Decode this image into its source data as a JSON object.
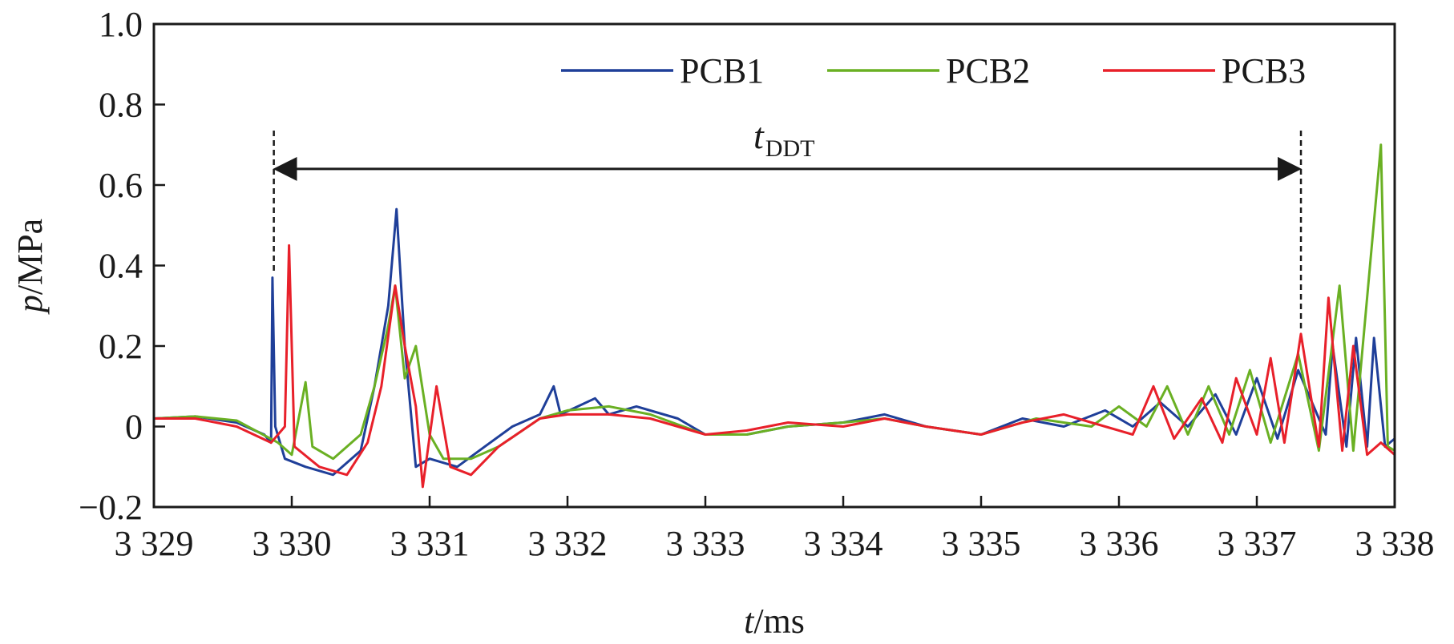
{
  "chart_data": {
    "type": "line",
    "xlabel": {
      "var": "t",
      "unit": "/ms"
    },
    "ylabel": {
      "var": "p",
      "unit": "/MPa"
    },
    "xlim": [
      3329,
      3338
    ],
    "ylim": [
      -0.2,
      1.0
    ],
    "x_ticks": [
      3329,
      3330,
      3331,
      3332,
      3333,
      3334,
      3335,
      3336,
      3337,
      3338
    ],
    "x_tick_labels": [
      "3 329",
      "3 330",
      "3 331",
      "3 332",
      "3 333",
      "3 334",
      "3 335",
      "3 336",
      "3 337",
      "3 338"
    ],
    "y_ticks": [
      -0.2,
      0,
      0.2,
      0.4,
      0.6,
      0.8,
      1.0
    ],
    "y_tick_labels": [
      "−0.2",
      "0",
      "0.2",
      "0.4",
      "0.6",
      "0.8",
      "1.0"
    ],
    "grid": false,
    "legend_position": "top-right",
    "series": [
      {
        "name": "PCB1",
        "color": "#1f3f99",
        "points": [
          [
            3329.0,
            0.02
          ],
          [
            3329.3,
            0.025
          ],
          [
            3329.6,
            0.01
          ],
          [
            3329.8,
            -0.02
          ],
          [
            3329.85,
            -0.04
          ],
          [
            3329.86,
            0.37
          ],
          [
            3329.88,
            0.0
          ],
          [
            3329.95,
            -0.08
          ],
          [
            3330.1,
            -0.1
          ],
          [
            3330.3,
            -0.12
          ],
          [
            3330.5,
            -0.06
          ],
          [
            3330.6,
            0.1
          ],
          [
            3330.7,
            0.3
          ],
          [
            3330.76,
            0.54
          ],
          [
            3330.82,
            0.2
          ],
          [
            3330.9,
            -0.1
          ],
          [
            3331.0,
            -0.08
          ],
          [
            3331.2,
            -0.1
          ],
          [
            3331.4,
            -0.05
          ],
          [
            3331.6,
            0.0
          ],
          [
            3331.8,
            0.03
          ],
          [
            3331.9,
            0.1
          ],
          [
            3331.95,
            0.03
          ],
          [
            3332.2,
            0.07
          ],
          [
            3332.3,
            0.03
          ],
          [
            3332.5,
            0.05
          ],
          [
            3332.8,
            0.02
          ],
          [
            3333.0,
            -0.02
          ],
          [
            3333.3,
            -0.02
          ],
          [
            3333.6,
            0.0
          ],
          [
            3334.0,
            0.01
          ],
          [
            3334.3,
            0.03
          ],
          [
            3334.6,
            0.0
          ],
          [
            3335.0,
            -0.02
          ],
          [
            3335.3,
            0.02
          ],
          [
            3335.6,
            0.0
          ],
          [
            3335.9,
            0.04
          ],
          [
            3336.1,
            0.0
          ],
          [
            3336.3,
            0.06
          ],
          [
            3336.5,
            0.0
          ],
          [
            3336.7,
            0.08
          ],
          [
            3336.85,
            -0.02
          ],
          [
            3337.0,
            0.12
          ],
          [
            3337.15,
            -0.03
          ],
          [
            3337.3,
            0.14
          ],
          [
            3337.5,
            -0.02
          ],
          [
            3337.55,
            0.2
          ],
          [
            3337.65,
            -0.05
          ],
          [
            3337.72,
            0.22
          ],
          [
            3337.8,
            -0.05
          ],
          [
            3337.85,
            0.22
          ],
          [
            3337.93,
            -0.05
          ],
          [
            3338.0,
            -0.03
          ]
        ]
      },
      {
        "name": "PCB2",
        "color": "#6ab023",
        "points": [
          [
            3329.0,
            0.02
          ],
          [
            3329.3,
            0.025
          ],
          [
            3329.6,
            0.015
          ],
          [
            3329.9,
            -0.04
          ],
          [
            3330.0,
            -0.07
          ],
          [
            3330.1,
            0.11
          ],
          [
            3330.15,
            -0.05
          ],
          [
            3330.3,
            -0.08
          ],
          [
            3330.5,
            -0.02
          ],
          [
            3330.6,
            0.1
          ],
          [
            3330.7,
            0.25
          ],
          [
            3330.75,
            0.35
          ],
          [
            3330.82,
            0.12
          ],
          [
            3330.9,
            0.2
          ],
          [
            3331.0,
            -0.02
          ],
          [
            3331.1,
            -0.08
          ],
          [
            3331.3,
            -0.08
          ],
          [
            3331.5,
            -0.05
          ],
          [
            3331.8,
            0.02
          ],
          [
            3332.0,
            0.04
          ],
          [
            3332.3,
            0.05
          ],
          [
            3332.6,
            0.03
          ],
          [
            3333.0,
            -0.02
          ],
          [
            3333.3,
            -0.02
          ],
          [
            3333.6,
            0.0
          ],
          [
            3334.0,
            0.01
          ],
          [
            3334.3,
            0.02
          ],
          [
            3334.6,
            0.0
          ],
          [
            3335.0,
            -0.02
          ],
          [
            3335.4,
            0.02
          ],
          [
            3335.8,
            0.0
          ],
          [
            3336.0,
            0.05
          ],
          [
            3336.2,
            0.0
          ],
          [
            3336.35,
            0.1
          ],
          [
            3336.5,
            -0.02
          ],
          [
            3336.65,
            0.1
          ],
          [
            3336.8,
            -0.02
          ],
          [
            3336.95,
            0.14
          ],
          [
            3337.1,
            -0.04
          ],
          [
            3337.3,
            0.18
          ],
          [
            3337.45,
            -0.06
          ],
          [
            3337.6,
            0.35
          ],
          [
            3337.7,
            -0.06
          ],
          [
            3337.9,
            0.7
          ],
          [
            3337.95,
            -0.05
          ],
          [
            3338.0,
            -0.06
          ]
        ]
      },
      {
        "name": "PCB3",
        "color": "#e8202a",
        "points": [
          [
            3329.0,
            0.02
          ],
          [
            3329.3,
            0.02
          ],
          [
            3329.6,
            0.0
          ],
          [
            3329.85,
            -0.04
          ],
          [
            3329.95,
            0.0
          ],
          [
            3329.98,
            0.45
          ],
          [
            3330.02,
            -0.05
          ],
          [
            3330.2,
            -0.1
          ],
          [
            3330.4,
            -0.12
          ],
          [
            3330.55,
            -0.04
          ],
          [
            3330.65,
            0.1
          ],
          [
            3330.75,
            0.35
          ],
          [
            3330.82,
            0.2
          ],
          [
            3330.9,
            0.05
          ],
          [
            3330.95,
            -0.15
          ],
          [
            3331.05,
            0.1
          ],
          [
            3331.15,
            -0.1
          ],
          [
            3331.3,
            -0.12
          ],
          [
            3331.5,
            -0.05
          ],
          [
            3331.8,
            0.02
          ],
          [
            3332.0,
            0.03
          ],
          [
            3332.3,
            0.03
          ],
          [
            3332.6,
            0.02
          ],
          [
            3333.0,
            -0.02
          ],
          [
            3333.3,
            -0.01
          ],
          [
            3333.6,
            0.01
          ],
          [
            3334.0,
            0.0
          ],
          [
            3334.3,
            0.02
          ],
          [
            3334.6,
            0.0
          ],
          [
            3335.0,
            -0.02
          ],
          [
            3335.3,
            0.01
          ],
          [
            3335.6,
            0.03
          ],
          [
            3335.9,
            0.0
          ],
          [
            3336.1,
            -0.02
          ],
          [
            3336.25,
            0.1
          ],
          [
            3336.4,
            -0.03
          ],
          [
            3336.6,
            0.07
          ],
          [
            3336.75,
            -0.04
          ],
          [
            3336.85,
            0.12
          ],
          [
            3337.0,
            -0.02
          ],
          [
            3337.1,
            0.17
          ],
          [
            3337.2,
            -0.04
          ],
          [
            3337.32,
            0.23
          ],
          [
            3337.45,
            -0.05
          ],
          [
            3337.52,
            0.32
          ],
          [
            3337.62,
            -0.06
          ],
          [
            3337.7,
            0.2
          ],
          [
            3337.8,
            -0.07
          ],
          [
            3337.9,
            -0.04
          ],
          [
            3338.0,
            -0.07
          ]
        ]
      }
    ],
    "annotations": {
      "tddt": {
        "var": "t",
        "sub": "DDT",
        "x_start": 3329.87,
        "x_end": 3337.32,
        "y_arrow": 0.64
      }
    }
  }
}
